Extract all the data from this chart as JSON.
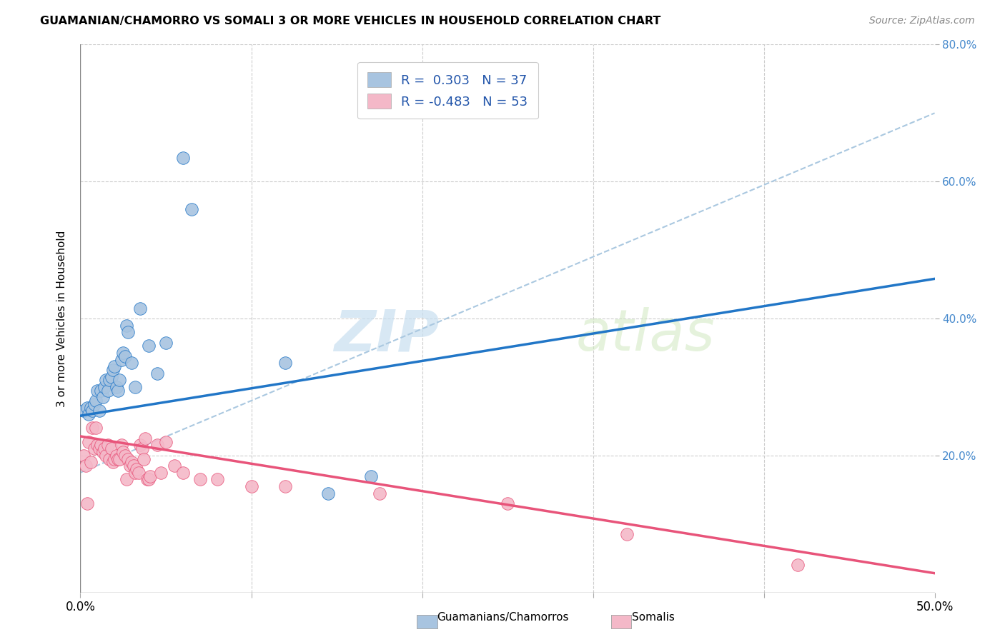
{
  "title": "GUAMANIAN/CHAMORRO VS SOMALI 3 OR MORE VEHICLES IN HOUSEHOLD CORRELATION CHART",
  "source": "Source: ZipAtlas.com",
  "ylabel": "3 or more Vehicles in Household",
  "xmin": 0.0,
  "xmax": 0.5,
  "ymin": 0.0,
  "ymax": 0.8,
  "blue_R": 0.303,
  "blue_N": 37,
  "pink_R": -0.483,
  "pink_N": 53,
  "blue_color": "#a8c4e0",
  "pink_color": "#f4b8c8",
  "blue_line_color": "#2176c7",
  "pink_line_color": "#e8547a",
  "dashed_line_color": "#aac8e0",
  "watermark_zip": "ZIP",
  "watermark_atlas": "atlas",
  "legend_label_blue": "Guamanians/Chamorros",
  "legend_label_pink": "Somalis",
  "blue_scatter_x": [
    0.002,
    0.004,
    0.005,
    0.006,
    0.007,
    0.008,
    0.009,
    0.01,
    0.011,
    0.012,
    0.013,
    0.014,
    0.015,
    0.016,
    0.017,
    0.018,
    0.019,
    0.02,
    0.021,
    0.022,
    0.023,
    0.024,
    0.025,
    0.026,
    0.027,
    0.028,
    0.03,
    0.032,
    0.035,
    0.04,
    0.045,
    0.05,
    0.06,
    0.065,
    0.12,
    0.145,
    0.17
  ],
  "blue_scatter_y": [
    0.265,
    0.27,
    0.26,
    0.27,
    0.265,
    0.275,
    0.28,
    0.295,
    0.265,
    0.295,
    0.285,
    0.3,
    0.31,
    0.295,
    0.31,
    0.315,
    0.325,
    0.33,
    0.3,
    0.295,
    0.31,
    0.34,
    0.35,
    0.345,
    0.39,
    0.38,
    0.335,
    0.3,
    0.415,
    0.36,
    0.32,
    0.365,
    0.635,
    0.56,
    0.335,
    0.145,
    0.17
  ],
  "pink_scatter_x": [
    0.002,
    0.003,
    0.004,
    0.005,
    0.006,
    0.007,
    0.008,
    0.009,
    0.01,
    0.011,
    0.012,
    0.013,
    0.014,
    0.015,
    0.016,
    0.017,
    0.018,
    0.019,
    0.02,
    0.021,
    0.022,
    0.023,
    0.024,
    0.025,
    0.026,
    0.027,
    0.028,
    0.029,
    0.03,
    0.031,
    0.032,
    0.033,
    0.034,
    0.035,
    0.036,
    0.037,
    0.038,
    0.039,
    0.04,
    0.041,
    0.045,
    0.047,
    0.05,
    0.055,
    0.06,
    0.07,
    0.08,
    0.1,
    0.12,
    0.175,
    0.25,
    0.32,
    0.42
  ],
  "pink_scatter_y": [
    0.2,
    0.185,
    0.13,
    0.22,
    0.19,
    0.24,
    0.21,
    0.24,
    0.215,
    0.21,
    0.215,
    0.205,
    0.21,
    0.2,
    0.215,
    0.195,
    0.21,
    0.19,
    0.195,
    0.2,
    0.195,
    0.195,
    0.215,
    0.205,
    0.2,
    0.165,
    0.195,
    0.185,
    0.19,
    0.185,
    0.175,
    0.18,
    0.175,
    0.215,
    0.21,
    0.195,
    0.225,
    0.165,
    0.165,
    0.17,
    0.215,
    0.175,
    0.22,
    0.185,
    0.175,
    0.165,
    0.165,
    0.155,
    0.155,
    0.145,
    0.13,
    0.085,
    0.04
  ],
  "blue_line_y_intercept": 0.258,
  "blue_line_slope": 0.4,
  "pink_line_y_intercept": 0.228,
  "pink_line_slope": -0.4,
  "dashed_line_y_intercept": 0.175,
  "dashed_line_slope": 1.05
}
